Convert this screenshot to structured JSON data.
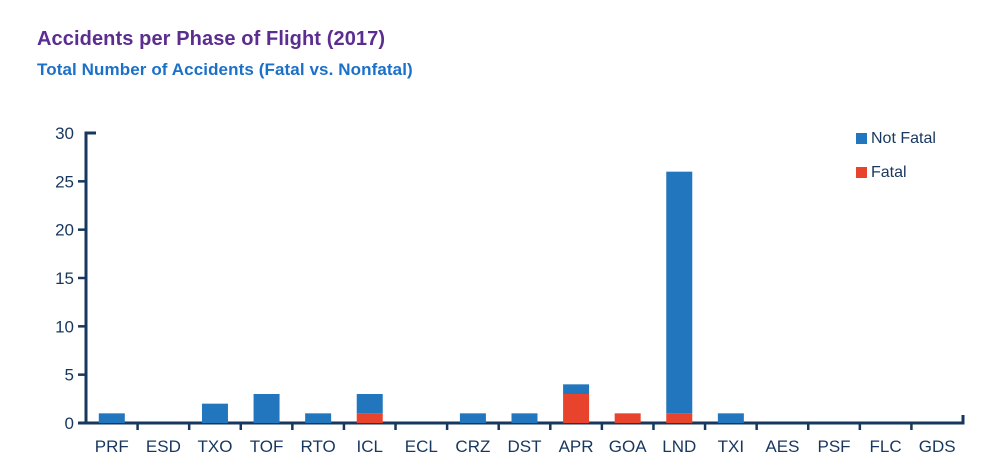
{
  "header": {
    "title": "Accidents per Phase of Flight (2017)",
    "subtitle": "Total Number of Accidents (Fatal vs. Nonfatal)"
  },
  "colors": {
    "title": "#5C2D91",
    "subtitle": "#1B70C9",
    "axis": "#17375E",
    "tick_label": "#17375E",
    "legend_text": "#17375E",
    "not_fatal": "#2276BD",
    "fatal": "#E8432D",
    "background": "#FFFFFF"
  },
  "legend": {
    "position": "top-right",
    "items": [
      {
        "label": "Not Fatal",
        "color": "#2276BD"
      },
      {
        "label": "Fatal",
        "color": "#E8432D"
      }
    ]
  },
  "chart_data": {
    "type": "bar",
    "stacked": true,
    "title": "Accidents per Phase of Flight (2017)",
    "subtitle": "Total Number of Accidents (Fatal vs. Nonfatal)",
    "categories": [
      "PRF",
      "ESD",
      "TXO",
      "TOF",
      "RTO",
      "ICL",
      "ECL",
      "CRZ",
      "DST",
      "APR",
      "GOA",
      "LND",
      "TXI",
      "AES",
      "PSF",
      "FLC",
      "GDS"
    ],
    "series": [
      {
        "name": "Fatal",
        "color": "#E8432D",
        "values": [
          0,
          0,
          0,
          0,
          0,
          1,
          0,
          0,
          0,
          3,
          1,
          1,
          0,
          0,
          0,
          0,
          0
        ]
      },
      {
        "name": "Not Fatal",
        "color": "#2276BD",
        "values": [
          1,
          0,
          2,
          3,
          1,
          2,
          0,
          1,
          1,
          1,
          0,
          25,
          1,
          0,
          0,
          0,
          0
        ]
      }
    ],
    "totals": [
      1,
      0,
      2,
      3,
      1,
      3,
      0,
      1,
      1,
      4,
      1,
      26,
      1,
      0,
      0,
      0,
      0
    ],
    "xlabel": "",
    "ylabel": "",
    "ylim": [
      0,
      30
    ],
    "yticks": [
      0,
      5,
      10,
      15,
      20,
      25,
      30
    ],
    "grid": false,
    "legend_position": "top-right"
  }
}
